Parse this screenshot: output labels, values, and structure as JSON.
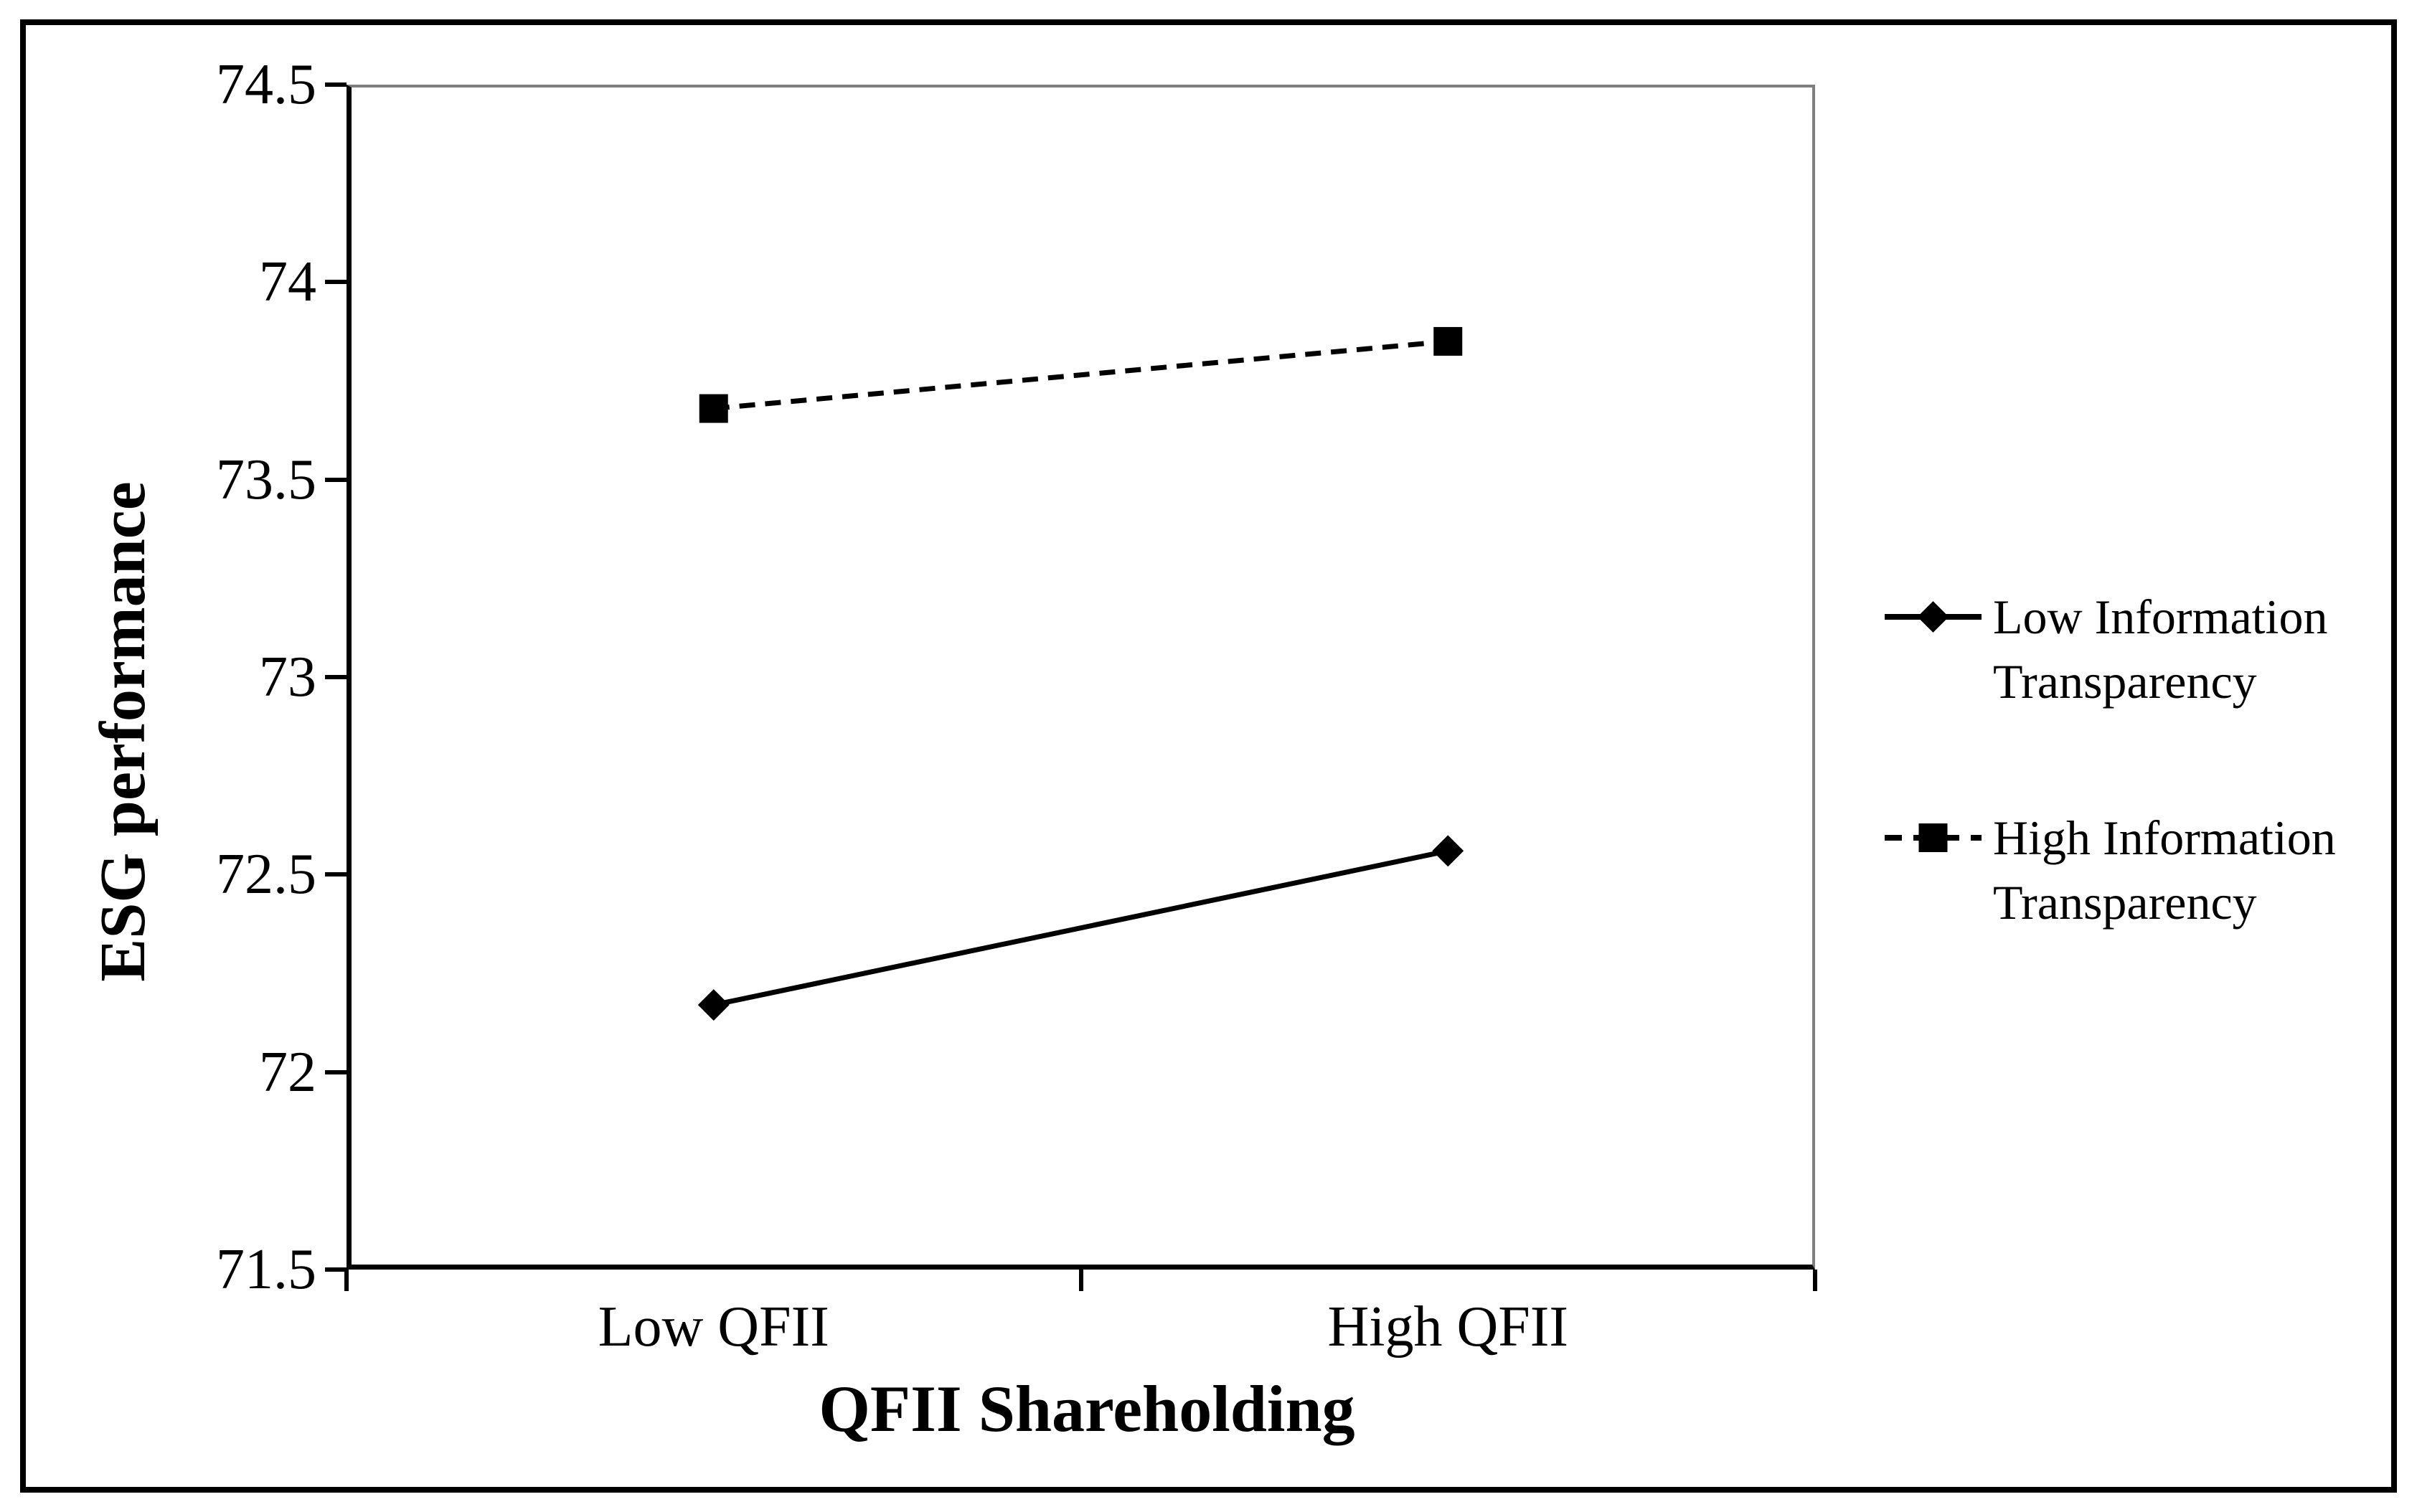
{
  "chart_data": {
    "type": "line",
    "xlabel": "QFII Shareholding",
    "ylabel": "ESG performance",
    "categories": [
      "Low QFII",
      "High QFII"
    ],
    "series": [
      {
        "name": "Low Information Transparency",
        "legend_lines": [
          "Low Information",
          "Transparency"
        ],
        "values": [
          72.17,
          72.56
        ],
        "marker": "diamond",
        "line_style": "solid",
        "color": "#000000"
      },
      {
        "name": "High Information Transparency",
        "legend_lines": [
          "High Information",
          "Transparency"
        ],
        "values": [
          73.68,
          73.85
        ],
        "marker": "square",
        "line_style": "dashed",
        "color": "#000000"
      }
    ],
    "ylim": [
      71.5,
      74.5
    ],
    "ytick_step": 0.5,
    "ytick_labels": [
      "74.5",
      "74",
      "73.5",
      "73",
      "72.5",
      "72",
      "71.5"
    ],
    "grid": false,
    "legend_position": "right",
    "axis_color": "#000000",
    "plot_border_color": "#7f7f7f",
    "background_color": "#ffffff"
  }
}
